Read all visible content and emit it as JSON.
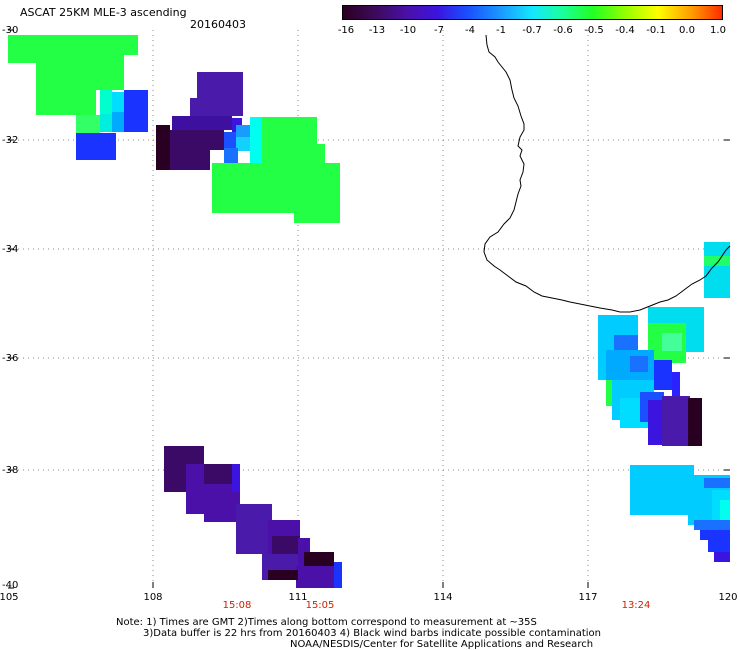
{
  "header": {
    "title": "ASCAT 25KM MLE-3 ascending",
    "date": "20160403"
  },
  "colorbar": {
    "labels": [
      "-16",
      "-13",
      "-10",
      "-7",
      "-4",
      "-1",
      "-0.7",
      "-0.6",
      "-0.5",
      "-0.4",
      "-0.1",
      "0.0",
      "1.0"
    ],
    "stops": [
      "#2b0022",
      "#3a0a55",
      "#4a10a8",
      "#3c14e0",
      "#1a50ff",
      "#1a9cff",
      "#14e8ff",
      "#1aff9a",
      "#22ff22",
      "#9cff00",
      "#ffff00",
      "#ff9a00",
      "#ff2a00"
    ]
  },
  "map": {
    "lat_labels": [
      "-30",
      "-32",
      "-34",
      "-36",
      "-38",
      "-40"
    ],
    "lon_labels": [
      "105",
      "108",
      "111",
      "114",
      "117",
      "120"
    ],
    "time_labels": [
      "15:08",
      "15:05",
      "13:24"
    ]
  },
  "footer": {
    "note_line1": "Note: 1) Times are GMT 2)Times along bottom correspond to measurement at ~35S",
    "note_line2": "3)Data buffer is 22 hrs from 20160403 4) Black wind barbs indicate possible contamination",
    "note_line3": "NOAA/NESDIS/Center for Satellite Applications and Research"
  },
  "colors": {
    "green": "#22ff44",
    "cyan": "#00ddee",
    "light_cyan": "#00ccff",
    "blue": "#1a33ff",
    "violet": "#4a1aaa",
    "dark_violet": "#3a0a66",
    "darkest": "#2a0022",
    "time_red": "#cc2200"
  }
}
